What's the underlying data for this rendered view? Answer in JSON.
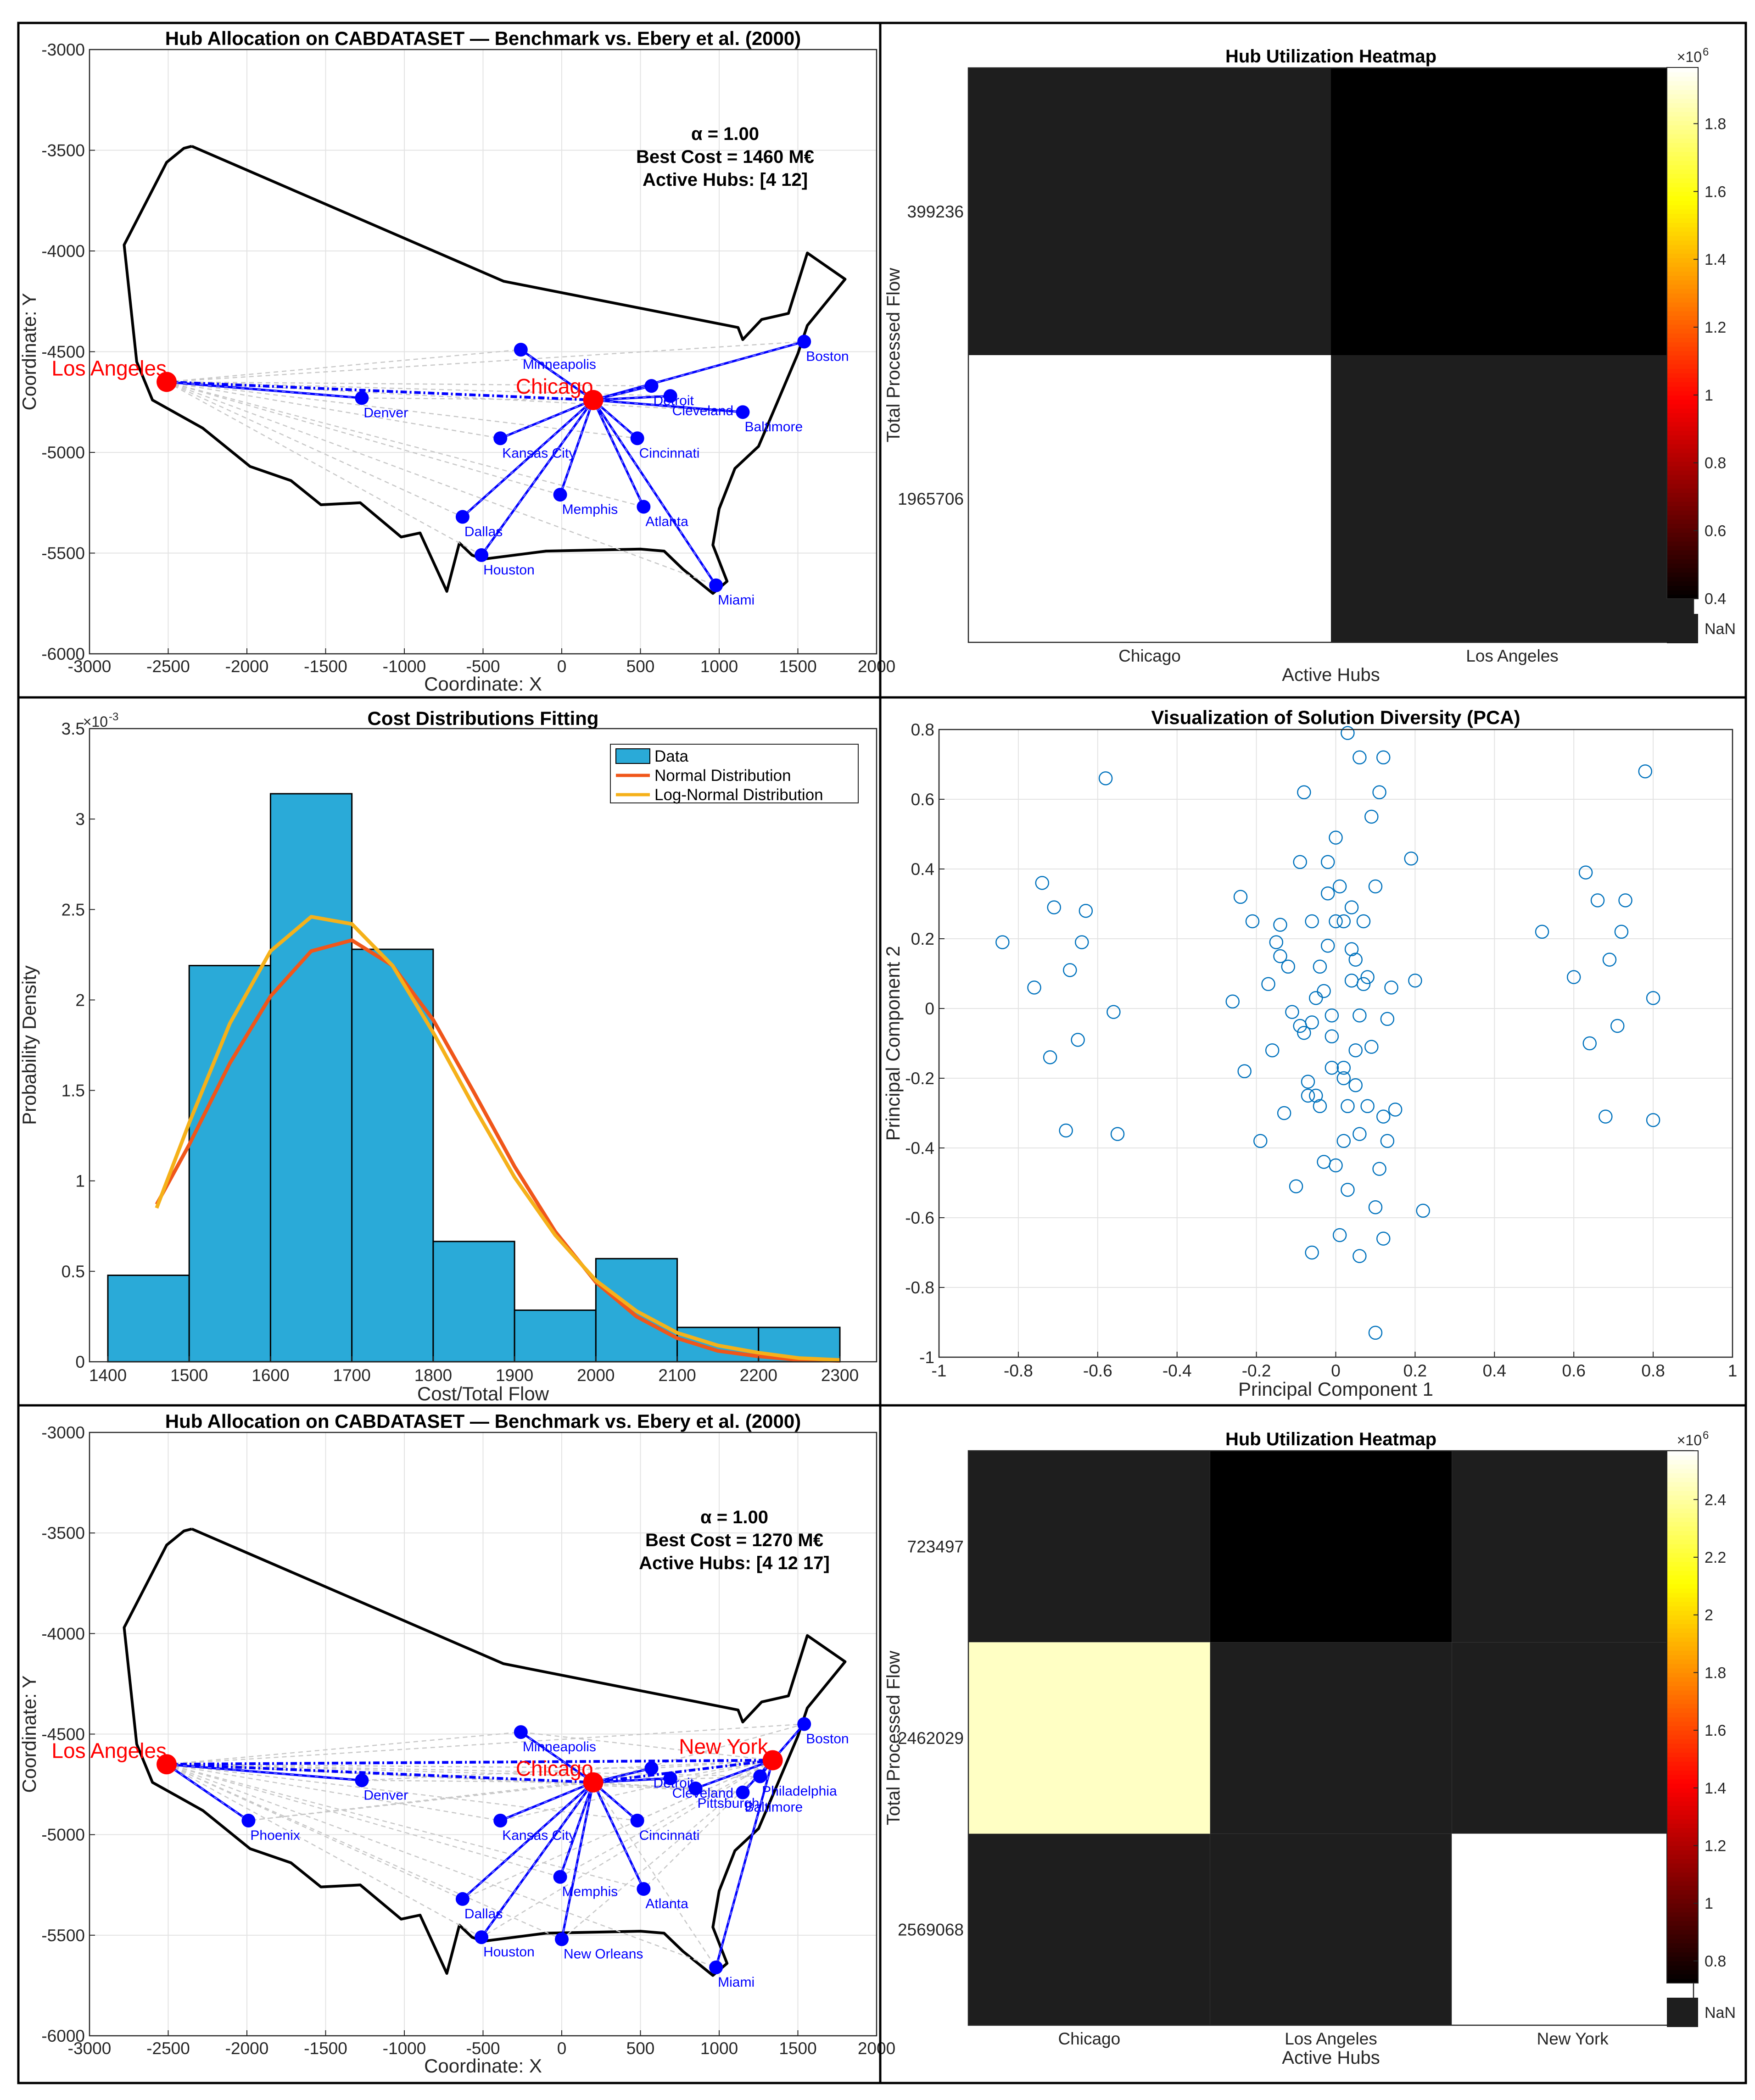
{
  "chart_data": [
    {
      "type": "scatter",
      "subtype": "network-map",
      "title": "Hub Allocation on CABDATASET — Benchmark vs. Ebery et al. (2000)",
      "xlabel": "Coordinate: X",
      "ylabel": "Coordinate: Y",
      "xlim": [
        -3000,
        2000
      ],
      "ylim": [
        -6000,
        -3000
      ],
      "xticks": [
        -3000,
        -2500,
        -2000,
        -1500,
        -1000,
        -500,
        0,
        500,
        1000,
        1500,
        2000
      ],
      "yticks": [
        -3000,
        -3500,
        -4000,
        -4500,
        -5000,
        -5500,
        -6000
      ],
      "grid": true,
      "annotation": [
        "α = 1.00",
        "Best Cost = 1460 M€",
        "Active Hubs: [4 12]"
      ],
      "colors": {
        "hub": "#ff0000",
        "node": "#0000ff",
        "link": "#0000ff",
        "outline": "#000000",
        "grey": "#c8c8c8"
      },
      "outline": [
        [
          -2350,
          -3480
        ],
        [
          -2400,
          -3490
        ],
        [
          -2510,
          -3560
        ],
        [
          -2780,
          -3970
        ],
        [
          -2700,
          -4550
        ],
        [
          -2600,
          -4740
        ],
        [
          -2280,
          -4880
        ],
        [
          -1980,
          -5070
        ],
        [
          -1720,
          -5140
        ],
        [
          -1530,
          -5260
        ],
        [
          -1280,
          -5250
        ],
        [
          -1020,
          -5420
        ],
        [
          -900,
          -5400
        ],
        [
          -730,
          -5690
        ],
        [
          -650,
          -5450
        ],
        [
          -570,
          -5510
        ],
        [
          -500,
          -5530
        ],
        [
          -100,
          -5490
        ],
        [
          500,
          -5480
        ],
        [
          650,
          -5490
        ],
        [
          770,
          -5580
        ],
        [
          960,
          -5700
        ],
        [
          1050,
          -5640
        ],
        [
          960,
          -5460
        ],
        [
          1000,
          -5280
        ],
        [
          1100,
          -5080
        ],
        [
          1250,
          -4970
        ],
        [
          1370,
          -4750
        ],
        [
          1500,
          -4510
        ],
        [
          1560,
          -4370
        ],
        [
          1800,
          -4140
        ],
        [
          1560,
          -4010
        ],
        [
          1440,
          -4310
        ],
        [
          1270,
          -4340
        ],
        [
          1150,
          -4440
        ],
        [
          1120,
          -4380
        ],
        [
          -370,
          -4150
        ],
        [
          -2350,
          -3480
        ]
      ],
      "hubs": [
        {
          "name": "Los Angeles",
          "x": -2510,
          "y": -4650
        },
        {
          "name": "Chicago",
          "x": 200,
          "y": -4740
        }
      ],
      "nodes": [
        {
          "name": "Minneapolis",
          "x": -260,
          "y": -4490,
          "hub": 1
        },
        {
          "name": "Boston",
          "x": 1540,
          "y": -4450,
          "hub": 1
        },
        {
          "name": "Denver",
          "x": -1270,
          "y": -4730,
          "hub": 0
        },
        {
          "name": "Detroit",
          "x": 570,
          "y": -4670,
          "hub": 1
        },
        {
          "name": "Cleveland",
          "x": 690,
          "y": -4720,
          "hub": 1
        },
        {
          "name": "Baltimore",
          "x": 1150,
          "y": -4800,
          "hub": 1
        },
        {
          "name": "Kansas City",
          "x": -390,
          "y": -4930,
          "hub": 1
        },
        {
          "name": "Cincinnati",
          "x": 480,
          "y": -4930,
          "hub": 1
        },
        {
          "name": "Memphis",
          "x": -10,
          "y": -5210,
          "hub": 1
        },
        {
          "name": "Atlanta",
          "x": 520,
          "y": -5270,
          "hub": 1
        },
        {
          "name": "Dallas",
          "x": -630,
          "y": -5320,
          "hub": 1
        },
        {
          "name": "Houston",
          "x": -510,
          "y": -5510,
          "hub": 1
        },
        {
          "name": "Miami",
          "x": 980,
          "y": -5660,
          "hub": 1
        }
      ]
    },
    {
      "type": "heatmap",
      "title": "Hub Utilization Heatmap",
      "xlabel": "Active Hubs",
      "ylabel": "Total Processed Flow",
      "x_categories": [
        "Chicago",
        "Los Angeles"
      ],
      "y_categories": [
        "399236",
        "1965706"
      ],
      "values": [
        [
          null,
          399236
        ],
        [
          1965706,
          null
        ]
      ],
      "colorbar": {
        "ticks": [
          "0.4",
          "0.6",
          "0.8",
          "1",
          "1.2",
          "1.4",
          "1.6",
          "1.8"
        ],
        "min": 0.399236,
        "max": 1.965706,
        "exponent": "×10",
        "exponent_power": "6",
        "nan_label": "NaN"
      },
      "colors": {
        "nan": "#1e1e1e"
      }
    },
    {
      "type": "bar",
      "subtype": "histogram-with-fits",
      "title": "Cost Distributions Fitting",
      "xlabel": "Cost/Total Flow",
      "ylabel": "Probability Density",
      "bin_edges": [
        1400,
        1500,
        1600,
        1700,
        1800,
        1900,
        2000,
        2100,
        2200,
        2300
      ],
      "values": [
        0.478,
        2.19,
        3.14,
        2.28,
        0.665,
        0.285,
        0.57,
        0.19,
        0.19
      ],
      "xlim": [
        1400,
        2300
      ],
      "ylim": [
        0,
        3.5
      ],
      "xticks": [
        1400,
        1500,
        1600,
        1700,
        1800,
        1900,
        2000,
        2100,
        2200,
        2300
      ],
      "yticks": [
        "0",
        "0.5",
        "1",
        "1.5",
        "2",
        "2.5",
        "3",
        "3.5"
      ],
      "y_exponent": "×10",
      "y_exponent_power": "-3",
      "legend": [
        "Data",
        "Normal Distribution",
        "Log-Normal Distribution"
      ],
      "legend_position": "top-right",
      "series": [
        {
          "name": "Normal Distribution",
          "x": [
            1460,
            1500,
            1550,
            1600,
            1650,
            1700,
            1750,
            1800,
            1850,
            1900,
            1950,
            2000,
            2050,
            2100,
            2150,
            2200,
            2250,
            2300
          ],
          "values": [
            0.87,
            1.2,
            1.65,
            2.02,
            2.27,
            2.33,
            2.19,
            1.89,
            1.49,
            1.08,
            0.72,
            0.44,
            0.25,
            0.13,
            0.06,
            0.03,
            0.01,
            0.005
          ]
        },
        {
          "name": "Log-Normal Distribution",
          "x": [
            1460,
            1500,
            1550,
            1600,
            1650,
            1700,
            1750,
            1800,
            1850,
            1900,
            1950,
            2000,
            2050,
            2100,
            2150,
            2200,
            2250,
            2300
          ],
          "values": [
            0.85,
            1.32,
            1.87,
            2.27,
            2.46,
            2.42,
            2.19,
            1.82,
            1.41,
            1.02,
            0.7,
            0.45,
            0.28,
            0.16,
            0.09,
            0.05,
            0.02,
            0.01
          ]
        }
      ],
      "colors": {
        "bar": "#2aaad8",
        "normal": "#f0561a",
        "lognormal": "#f5b11a"
      }
    },
    {
      "type": "scatter",
      "title": "Visualization of Solution Diversity (PCA)",
      "xlabel": "Principal Component 1",
      "ylabel": "Principal Component 2",
      "xlim": [
        -1,
        1
      ],
      "ylim": [
        -1,
        0.8
      ],
      "xticks": [
        "-1",
        "-0.8",
        "-0.6",
        "-0.4",
        "-0.2",
        "0",
        "0.2",
        "0.4",
        "0.6",
        "0.8",
        "1"
      ],
      "yticks": [
        "-1",
        "-0.8",
        "-0.6",
        "-0.4",
        "-0.2",
        "0",
        "0.2",
        "0.4",
        "0.6",
        "0.8"
      ],
      "grid": true,
      "points": [
        [
          -0.84,
          0.19
        ],
        [
          -0.76,
          0.06
        ],
        [
          -0.74,
          0.36
        ],
        [
          -0.72,
          -0.14
        ],
        [
          -0.71,
          0.29
        ],
        [
          -0.68,
          -0.35
        ],
        [
          -0.67,
          0.11
        ],
        [
          -0.65,
          -0.09
        ],
        [
          -0.64,
          0.19
        ],
        [
          -0.63,
          0.28
        ],
        [
          -0.58,
          0.66
        ],
        [
          -0.56,
          -0.01
        ],
        [
          -0.55,
          -0.36
        ],
        [
          -0.26,
          0.02
        ],
        [
          -0.24,
          0.32
        ],
        [
          -0.23,
          -0.18
        ],
        [
          -0.21,
          0.25
        ],
        [
          -0.19,
          -0.38
        ],
        [
          -0.17,
          0.07
        ],
        [
          -0.16,
          -0.12
        ],
        [
          -0.15,
          0.19
        ],
        [
          -0.14,
          0.15
        ],
        [
          -0.14,
          0.24
        ],
        [
          -0.13,
          -0.3
        ],
        [
          -0.12,
          0.12
        ],
        [
          -0.11,
          -0.01
        ],
        [
          -0.1,
          -0.51
        ],
        [
          -0.09,
          0.42
        ],
        [
          -0.09,
          -0.05
        ],
        [
          -0.08,
          0.62
        ],
        [
          -0.08,
          -0.07
        ],
        [
          -0.07,
          -0.21
        ],
        [
          -0.07,
          -0.25
        ],
        [
          -0.06,
          0.25
        ],
        [
          -0.06,
          -0.7
        ],
        [
          -0.06,
          -0.04
        ],
        [
          -0.05,
          0.03
        ],
        [
          -0.05,
          -0.25
        ],
        [
          -0.04,
          0.12
        ],
        [
          -0.04,
          -0.28
        ],
        [
          -0.03,
          0.05
        ],
        [
          -0.03,
          -0.44
        ],
        [
          -0.02,
          0.33
        ],
        [
          -0.02,
          0.42
        ],
        [
          -0.02,
          0.18
        ],
        [
          -0.01,
          -0.17
        ],
        [
          -0.01,
          -0.08
        ],
        [
          -0.01,
          -0.02
        ],
        [
          0,
          0.49
        ],
        [
          0,
          -0.45
        ],
        [
          0,
          0.25
        ],
        [
          0.01,
          0.35
        ],
        [
          0.01,
          -0.65
        ],
        [
          0.02,
          0.25
        ],
        [
          0.02,
          -0.17
        ],
        [
          0.02,
          -0.2
        ],
        [
          0.02,
          -0.38
        ],
        [
          0.03,
          0.79
        ],
        [
          0.03,
          -0.52
        ],
        [
          0.03,
          -0.28
        ],
        [
          0.04,
          0.29
        ],
        [
          0.04,
          0.17
        ],
        [
          0.04,
          0.08
        ],
        [
          0.05,
          0.14
        ],
        [
          0.05,
          -0.12
        ],
        [
          0.05,
          -0.22
        ],
        [
          0.06,
          0.72
        ],
        [
          0.06,
          -0.36
        ],
        [
          0.06,
          -0.02
        ],
        [
          0.06,
          -0.71
        ],
        [
          0.07,
          0.25
        ],
        [
          0.07,
          0.07
        ],
        [
          0.08,
          0.09
        ],
        [
          0.08,
          -0.28
        ],
        [
          0.09,
          0.55
        ],
        [
          0.09,
          -0.11
        ],
        [
          0.1,
          -0.57
        ],
        [
          0.1,
          -0.93
        ],
        [
          0.1,
          0.35
        ],
        [
          0.11,
          -0.46
        ],
        [
          0.11,
          0.62
        ],
        [
          0.12,
          0.72
        ],
        [
          0.12,
          -0.31
        ],
        [
          0.12,
          -0.66
        ],
        [
          0.13,
          -0.03
        ],
        [
          0.13,
          -0.38
        ],
        [
          0.14,
          0.06
        ],
        [
          0.15,
          -0.29
        ],
        [
          0.19,
          0.43
        ],
        [
          0.2,
          0.08
        ],
        [
          0.22,
          -0.58
        ],
        [
          0.52,
          0.22
        ],
        [
          0.6,
          0.09
        ],
        [
          0.63,
          0.39
        ],
        [
          0.64,
          -0.1
        ],
        [
          0.66,
          0.31
        ],
        [
          0.68,
          -0.31
        ],
        [
          0.69,
          0.14
        ],
        [
          0.71,
          -0.05
        ],
        [
          0.72,
          0.22
        ],
        [
          0.73,
          0.31
        ],
        [
          0.78,
          0.68
        ],
        [
          0.8,
          0.03
        ],
        [
          0.8,
          -0.32
        ]
      ]
    },
    {
      "type": "scatter",
      "subtype": "network-map",
      "title": "Hub Allocation on CABDATASET — Benchmark vs. Ebery et al. (2000)",
      "xlabel": "Coordinate: X",
      "ylabel": "Coordinate: Y",
      "xlim": [
        -3000,
        2000
      ],
      "ylim": [
        -6000,
        -3000
      ],
      "xticks": [
        -3000,
        -2500,
        -2000,
        -1500,
        -1000,
        -500,
        0,
        500,
        1000,
        1500,
        2000
      ],
      "yticks": [
        -3000,
        -3500,
        -4000,
        -4500,
        -5000,
        -5500,
        -6000
      ],
      "grid": true,
      "annotation": [
        "α = 1.00",
        "Best Cost = 1270 M€",
        "Active Hubs: [4 12 17]"
      ],
      "colors": {
        "hub": "#ff0000",
        "node": "#0000ff",
        "link": "#0000ff",
        "outline": "#000000",
        "grey": "#c8c8c8"
      },
      "hubs": [
        {
          "name": "Los Angeles",
          "x": -2510,
          "y": -4650
        },
        {
          "name": "Chicago",
          "x": 200,
          "y": -4740
        },
        {
          "name": "New York",
          "x": 1340,
          "y": -4630
        }
      ],
      "nodes": [
        {
          "name": "Minneapolis",
          "x": -260,
          "y": -4490,
          "hub": 1
        },
        {
          "name": "Boston",
          "x": 1540,
          "y": -4450,
          "hub": 2
        },
        {
          "name": "Denver",
          "x": -1270,
          "y": -4730,
          "hub": 0
        },
        {
          "name": "Phoenix",
          "x": -1990,
          "y": -4930,
          "hub": 0
        },
        {
          "name": "Detroit",
          "x": 570,
          "y": -4670,
          "hub": 1
        },
        {
          "name": "Cleveland",
          "x": 690,
          "y": -4720,
          "hub": 1
        },
        {
          "name": "Pittsburgh",
          "x": 850,
          "y": -4770,
          "hub": 2
        },
        {
          "name": "Philadelphia",
          "x": 1260,
          "y": -4710,
          "hub": 2
        },
        {
          "name": "Baltimore",
          "x": 1150,
          "y": -4790,
          "hub": 2
        },
        {
          "name": "Kansas City",
          "x": -390,
          "y": -4930,
          "hub": 1
        },
        {
          "name": "Cincinnati",
          "x": 480,
          "y": -4930,
          "hub": 1
        },
        {
          "name": "Memphis",
          "x": -10,
          "y": -5210,
          "hub": 1
        },
        {
          "name": "Atlanta",
          "x": 520,
          "y": -5270,
          "hub": 1
        },
        {
          "name": "Dallas",
          "x": -630,
          "y": -5320,
          "hub": 1
        },
        {
          "name": "Houston",
          "x": -510,
          "y": -5510,
          "hub": 1
        },
        {
          "name": "New Orleans",
          "x": 0,
          "y": -5520,
          "hub": 1
        },
        {
          "name": "Miami",
          "x": 980,
          "y": -5660,
          "hub": 2
        }
      ]
    },
    {
      "type": "heatmap",
      "title": "Hub Utilization Heatmap",
      "xlabel": "Active Hubs",
      "ylabel": "Total Processed Flow",
      "x_categories": [
        "Chicago",
        "Los Angeles",
        "New York"
      ],
      "y_categories": [
        "723497",
        "2462029",
        "2569068"
      ],
      "values": [
        [
          null,
          723497,
          null
        ],
        [
          2462029,
          null,
          null
        ],
        [
          null,
          null,
          2569068
        ]
      ],
      "colorbar": {
        "ticks": [
          "0.8",
          "1",
          "1.2",
          "1.4",
          "1.6",
          "1.8",
          "2",
          "2.2",
          "2.4"
        ],
        "min": 0.723497,
        "max": 2.569068,
        "exponent": "×10",
        "exponent_power": "6",
        "nan_label": "NaN"
      },
      "colors": {
        "nan": "#1e1e1e"
      }
    }
  ]
}
